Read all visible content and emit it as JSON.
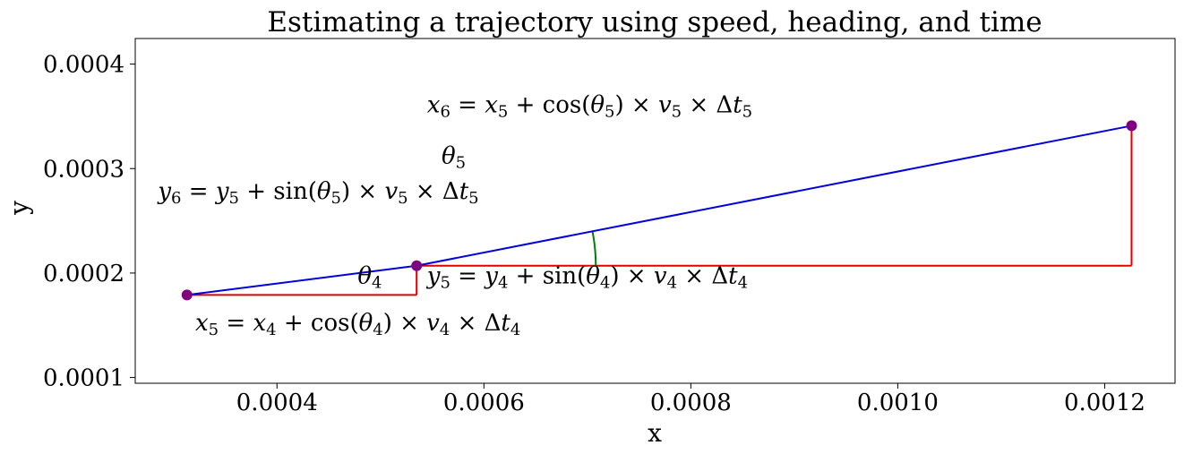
{
  "chart_data": {
    "type": "line",
    "title": "Estimating a trajectory using speed, heading, and time",
    "xlabel": "x",
    "ylabel": "y",
    "xlim": [
      0.000263,
      0.001268
    ],
    "ylim": [
      9.45e-05,
      0.0004245
    ],
    "xticks": [
      {
        "value": 0.0004,
        "label": "0.0004"
      },
      {
        "value": 0.0006,
        "label": "0.0006"
      },
      {
        "value": 0.0008,
        "label": "0.0008"
      },
      {
        "value": 0.001,
        "label": "0.0010"
      },
      {
        "value": 0.0012,
        "label": "0.0012"
      }
    ],
    "yticks": [
      {
        "value": 0.0001,
        "label": "0.0001"
      },
      {
        "value": 0.0002,
        "label": "0.0002"
      },
      {
        "value": 0.0003,
        "label": "0.0003"
      },
      {
        "value": 0.0004,
        "label": "0.0004"
      }
    ],
    "grid": false,
    "points": [
      {
        "x": 0.000313,
        "y": 0.000179
      },
      {
        "x": 0.000535,
        "y": 0.000207
      },
      {
        "x": 0.001226,
        "y": 0.000341
      }
    ],
    "colors": {
      "trajectory": "#0000dd",
      "components": "#dd0000",
      "heading_arc": "#008000",
      "points": "#800080"
    },
    "annotations": [
      {
        "id": "x6",
        "x": 0.000545,
        "y": 0.000354,
        "anchor": "start",
        "parts": [
          [
            "x",
            "i"
          ],
          [
            "6",
            "s"
          ],
          [
            " = ",
            "r"
          ],
          [
            "x",
            "i"
          ],
          [
            "5",
            "s"
          ],
          [
            " + cos(",
            "r"
          ],
          [
            "θ",
            "i"
          ],
          [
            "5",
            "s"
          ],
          [
            ") × ",
            "r"
          ],
          [
            "v",
            "i"
          ],
          [
            "5",
            "s"
          ],
          [
            " × Δ",
            "r"
          ],
          [
            "t",
            "i"
          ],
          [
            "5",
            "s"
          ]
        ]
      },
      {
        "id": "theta5",
        "x": 0.000559,
        "y": 0.000305,
        "anchor": "start",
        "parts": [
          [
            "θ",
            "i"
          ],
          [
            "5",
            "s"
          ]
        ]
      },
      {
        "id": "y6",
        "x": 0.00044,
        "y": 0.000271,
        "anchor": "middle",
        "parts": [
          [
            "y",
            "i"
          ],
          [
            "6",
            "s"
          ],
          [
            " = ",
            "r"
          ],
          [
            "y",
            "i"
          ],
          [
            "5",
            "s"
          ],
          [
            " + sin(",
            "r"
          ],
          [
            "θ",
            "i"
          ],
          [
            "5",
            "s"
          ],
          [
            ") × ",
            "r"
          ],
          [
            "v",
            "i"
          ],
          [
            "5",
            "s"
          ],
          [
            " × Δ",
            "r"
          ],
          [
            "t",
            "i"
          ],
          [
            "5",
            "s"
          ]
        ]
      },
      {
        "id": "theta4",
        "x": 0.000478,
        "y": 0.00019,
        "anchor": "start",
        "parts": [
          [
            "θ",
            "i"
          ],
          [
            "4",
            "s"
          ]
        ]
      },
      {
        "id": "y5",
        "x": 0.000545,
        "y": 0.00019,
        "anchor": "start",
        "parts": [
          [
            "y",
            "i"
          ],
          [
            "5",
            "s"
          ],
          [
            " = ",
            "r"
          ],
          [
            "y",
            "i"
          ],
          [
            "4",
            "s"
          ],
          [
            " + sin(",
            "r"
          ],
          [
            "θ",
            "i"
          ],
          [
            "4",
            "s"
          ],
          [
            ") × ",
            "r"
          ],
          [
            "v",
            "i"
          ],
          [
            "4",
            "s"
          ],
          [
            " × Δ",
            "r"
          ],
          [
            "t",
            "i"
          ],
          [
            "4",
            "s"
          ]
        ]
      },
      {
        "id": "x5",
        "x": 0.000321,
        "y": 0.000145,
        "anchor": "start",
        "parts": [
          [
            "x",
            "i"
          ],
          [
            "5",
            "s"
          ],
          [
            " = ",
            "r"
          ],
          [
            "x",
            "i"
          ],
          [
            "4",
            "s"
          ],
          [
            " + cos(",
            "r"
          ],
          [
            "θ",
            "i"
          ],
          [
            "4",
            "s"
          ],
          [
            ") × ",
            "r"
          ],
          [
            "v",
            "i"
          ],
          [
            "4",
            "s"
          ],
          [
            " × Δ",
            "r"
          ],
          [
            "t",
            "i"
          ],
          [
            "4",
            "s"
          ]
        ]
      }
    ]
  }
}
